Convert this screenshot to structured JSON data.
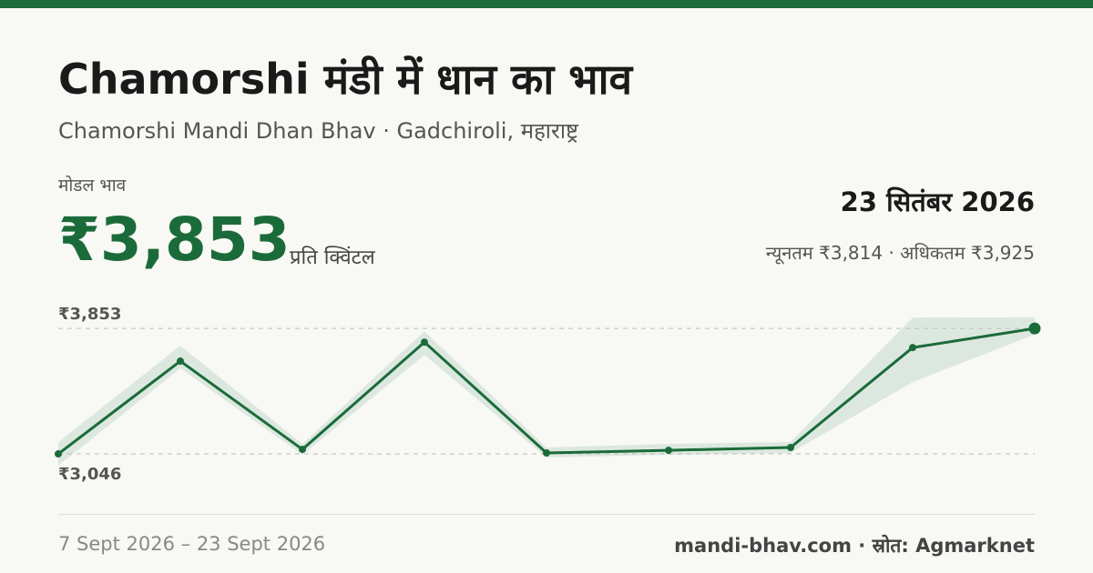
{
  "header": {
    "title": "Chamorshi मंडी में धान का भाव",
    "subtitle": "Chamorshi Mandi Dhan Bhav · Gadchiroli, महाराष्ट्र"
  },
  "stats": {
    "modal_label": "मोडल भाव",
    "modal_price": "₹3,853",
    "unit": "प्रति क्विंटल",
    "date": "23 सितंबर 2026",
    "range": "न्यूनतम ₹3,814 · अधिकतम ₹3,925"
  },
  "chart_data": {
    "type": "line",
    "color": "#1b6b3a",
    "band_color": "#dce8df",
    "values": [
      3046,
      3643,
      3075,
      3765,
      3052,
      3069,
      3087,
      3730,
      3853
    ],
    "min_values": [
      2970,
      3596,
      3040,
      3683,
      3023,
      3040,
      3052,
      3508,
      3814
    ],
    "max_values": [
      3122,
      3742,
      3110,
      3835,
      3087,
      3110,
      3122,
      3923,
      3925
    ],
    "ylim": [
      2970,
      3930
    ],
    "reference_lines": [
      {
        "value": 3853,
        "label": "₹3,853"
      },
      {
        "value": 3046,
        "label": "₹3,046"
      }
    ]
  },
  "footer": {
    "date_range": "7 Sept 2026 – 23 Sept 2026",
    "source": "mandi-bhav.com · स्रोत: Agmarknet"
  }
}
